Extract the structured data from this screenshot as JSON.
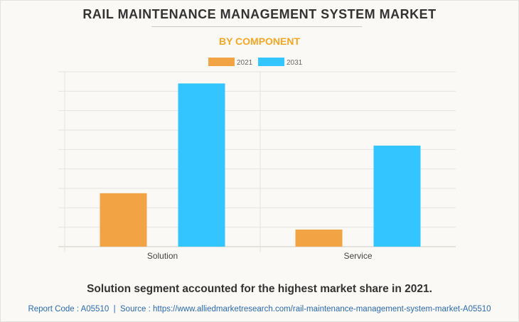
{
  "header": {
    "title": "RAIL MAINTENANCE MANAGEMENT SYSTEM MARKET",
    "subtitle": "BY COMPONENT"
  },
  "footer": {
    "caption": "Solution segment accounted for the highest market share in 2021.",
    "source": "Report Code : A05510  |  Source : https://www.alliedmarketresearch.com/rail-maintenance-management-system-market-A05510"
  },
  "colors": {
    "series_2021": "#f2a444",
    "series_2031": "#33c5ff",
    "title": "#333333",
    "subtitle": "#f5a623",
    "source": "#2a6ab0",
    "grid": "#e6e4df",
    "background": "#faf9f5"
  },
  "chart_data": {
    "type": "bar",
    "title": "RAIL MAINTENANCE MANAGEMENT SYSTEM MARKET",
    "subtitle": "BY COMPONENT",
    "xlabel": "",
    "ylabel": "",
    "categories": [
      "Solution",
      "Service"
    ],
    "series": [
      {
        "name": "2021",
        "color": "#f2a444",
        "values": [
          2.75,
          0.88
        ]
      },
      {
        "name": "2031",
        "color": "#33c5ff",
        "values": [
          8.4,
          5.2
        ]
      }
    ],
    "ylim": [
      0,
      9
    ],
    "y_gridlines": 9,
    "y_tick_labels_shown": false,
    "grid": true,
    "legend": {
      "position": "top-center",
      "entries": [
        "2021",
        "2031"
      ]
    },
    "units_note": "relative gridline units; no y-axis values shown"
  }
}
